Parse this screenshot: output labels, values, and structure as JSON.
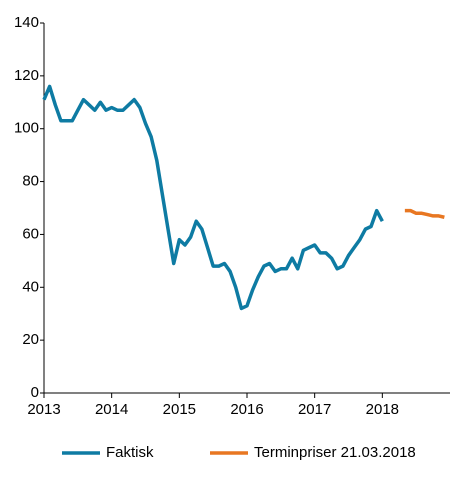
{
  "chart_data": {
    "type": "line",
    "series": [
      {
        "name": "Faktisk",
        "color": "#0e7ba3",
        "x": [
          2013,
          2013.083,
          2013.167,
          2013.25,
          2013.333,
          2013.417,
          2013.5,
          2013.583,
          2013.667,
          2013.75,
          2013.833,
          2013.917,
          2014,
          2014.083,
          2014.167,
          2014.25,
          2014.333,
          2014.417,
          2014.5,
          2014.583,
          2014.667,
          2014.75,
          2014.833,
          2014.917,
          2015,
          2015.083,
          2015.167,
          2015.25,
          2015.333,
          2015.417,
          2015.5,
          2015.583,
          2015.667,
          2015.75,
          2015.833,
          2015.917,
          2016,
          2016.083,
          2016.167,
          2016.25,
          2016.333,
          2016.417,
          2016.5,
          2016.583,
          2016.667,
          2016.75,
          2016.833,
          2016.917,
          2017,
          2017.083,
          2017.167,
          2017.25,
          2017.333,
          2017.417,
          2017.5,
          2017.583,
          2017.667,
          2017.75,
          2017.833,
          2017.917,
          2018,
          2018.083
        ],
        "values": [
          111,
          116,
          109,
          103,
          103,
          103,
          107,
          111,
          109,
          107,
          110,
          107,
          108,
          107,
          107,
          109,
          111,
          108,
          102,
          97,
          88,
          75,
          62,
          49,
          58,
          56,
          59,
          65,
          62,
          55,
          48,
          48,
          49,
          46,
          40,
          32,
          33,
          39,
          44,
          48,
          49,
          46,
          47,
          47,
          51,
          47,
          54,
          55,
          56,
          53,
          53,
          51,
          47,
          48,
          52,
          55,
          58,
          62,
          63,
          69,
          65,
          null
        ]
      },
      {
        "name": "Terminpriser 21.03.2018",
        "color": "#e87722",
        "x": [
          2018.333,
          2018.417,
          2018.5,
          2018.583,
          2018.667,
          2018.75,
          2018.833,
          2018.917
        ],
        "values": [
          69,
          69,
          68,
          68,
          67.5,
          67,
          67,
          66.5
        ]
      }
    ],
    "xlim": [
      2013,
      2019
    ],
    "xticks": [
      2013,
      2014,
      2015,
      2016,
      2017,
      2018
    ],
    "ylim": [
      0,
      140
    ],
    "yticks": [
      0,
      20,
      40,
      60,
      80,
      100,
      120,
      140
    ],
    "legend": "bottom"
  }
}
